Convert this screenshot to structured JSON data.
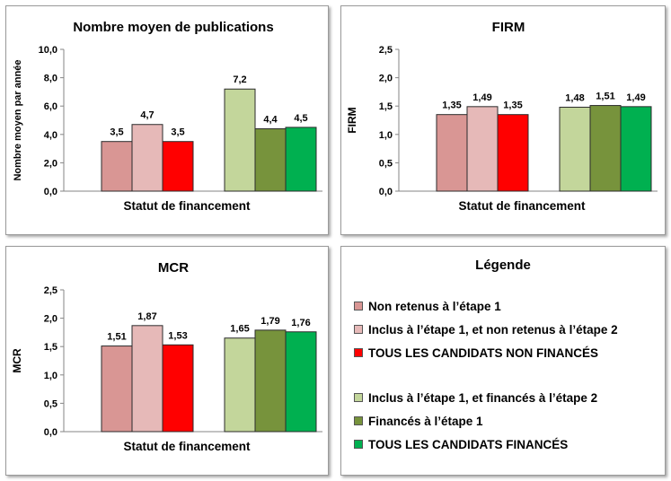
{
  "chart_data": [
    {
      "type": "bar",
      "title": "Nombre moyen  de publications",
      "ylabel": "Nombre moyen par année",
      "xlabel": "Statut de financement",
      "ylim": [
        0,
        10
      ],
      "yticks": [
        "0,0",
        "2,0",
        "4,0",
        "6,0",
        "8,0",
        "10,0"
      ],
      "groups": [
        {
          "values": [
            3.5,
            4.7,
            3.5
          ],
          "labels": [
            "3,5",
            "4,7",
            "3,5"
          ]
        },
        {
          "values": [
            7.2,
            4.4,
            4.5
          ],
          "labels": [
            "7,2",
            "4,4",
            "4,5"
          ]
        }
      ]
    },
    {
      "type": "bar",
      "title": "FIRM",
      "ylabel": "FIRM",
      "xlabel": "Statut de financement",
      "ylim": [
        0,
        2.5
      ],
      "yticks": [
        "0,0",
        "0,5",
        "1,0",
        "1,5",
        "2,0",
        "2,5"
      ],
      "groups": [
        {
          "values": [
            1.35,
            1.49,
            1.35
          ],
          "labels": [
            "1,35",
            "1,49",
            "1,35"
          ]
        },
        {
          "values": [
            1.48,
            1.51,
            1.49
          ],
          "labels": [
            "1,48",
            "1,51",
            "1,49"
          ]
        }
      ]
    },
    {
      "type": "bar",
      "title": "MCR",
      "ylabel": "MCR",
      "xlabel": "Statut de financement",
      "ylim": [
        0,
        2.5
      ],
      "yticks": [
        "0,0",
        "0,5",
        "1,0",
        "1,5",
        "2,0",
        "2,5"
      ],
      "groups": [
        {
          "values": [
            1.51,
            1.87,
            1.53
          ],
          "labels": [
            "1,51",
            "1,87",
            "1,53"
          ]
        },
        {
          "values": [
            1.65,
            1.79,
            1.76
          ],
          "labels": [
            "1,65",
            "1,79",
            "1,76"
          ]
        }
      ]
    }
  ],
  "series_colors": [
    "#d99694",
    "#e6b9b8",
    "#ff0000",
    "#c3d69b",
    "#77933c",
    "#00b050"
  ],
  "legend": {
    "title": "Légende",
    "items": [
      {
        "label": "Non retenus à l’étape 1",
        "color": "#d99694"
      },
      {
        "label": "Inclus à l’étape 1, et non retenus à l’étape 2",
        "color": "#e6b9b8"
      },
      {
        "label": "TOUS LES CANDIDATS NON FINANCÉS",
        "color": "#ff0000"
      },
      {
        "label": "Inclus à l’étape 1, et financés à l’étape 2",
        "color": "#c3d69b"
      },
      {
        "label": "Financés à l’étape 1",
        "color": "#77933c"
      },
      {
        "label": "TOUS LES CANDIDATS FINANCÉS",
        "color": "#00b050"
      }
    ]
  }
}
